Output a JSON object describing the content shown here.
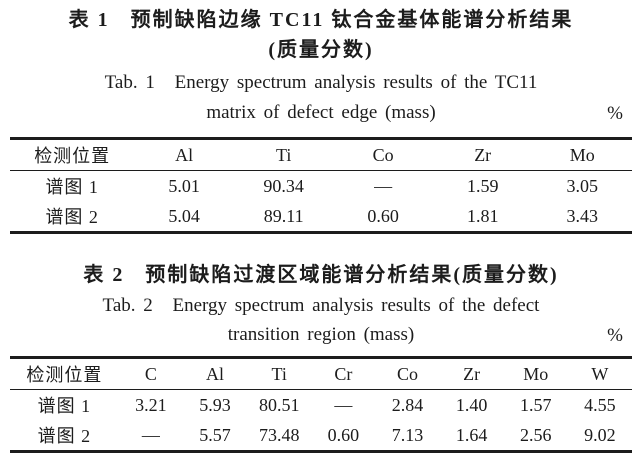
{
  "colors": {
    "background": "#ffffff",
    "text": "#1c1c1c",
    "rule": "#1c1c1c"
  },
  "table1": {
    "caption_zh_label": "表 1",
    "caption_zh_title": "预制缺陷边缘 TC11 钛合金基体能谱分析结果",
    "caption_zh_subtitle": "(质量分数)",
    "caption_en_label": "Tab. 1",
    "caption_en_line1": "Energy spectrum analysis results of the TC11",
    "caption_en_line2": "matrix of defect edge (mass)",
    "unit": "%",
    "columns": [
      "检测位置",
      "Al",
      "Ti",
      "Co",
      "Zr",
      "Mo"
    ],
    "rows": [
      [
        "谱图 1",
        "5.01",
        "90.34",
        "—",
        "1.59",
        "3.05"
      ],
      [
        "谱图 2",
        "5.04",
        "89.11",
        "0.60",
        "1.81",
        "3.43"
      ]
    ]
  },
  "table2": {
    "caption_zh_label": "表 2",
    "caption_zh_title": "预制缺陷过渡区域能谱分析结果(质量分数)",
    "caption_en_label": "Tab. 2",
    "caption_en_line1": "Energy spectrum analysis results of the defect",
    "caption_en_line2": "transition region (mass)",
    "unit": "%",
    "columns": [
      "检测位置",
      "C",
      "Al",
      "Ti",
      "Cr",
      "Co",
      "Zr",
      "Mo",
      "W"
    ],
    "rows": [
      [
        "谱图 1",
        "3.21",
        "5.93",
        "80.51",
        "—",
        "2.84",
        "1.40",
        "1.57",
        "4.55"
      ],
      [
        "谱图 2",
        "—",
        "5.57",
        "73.48",
        "0.60",
        "7.13",
        "1.64",
        "2.56",
        "9.02"
      ]
    ]
  }
}
